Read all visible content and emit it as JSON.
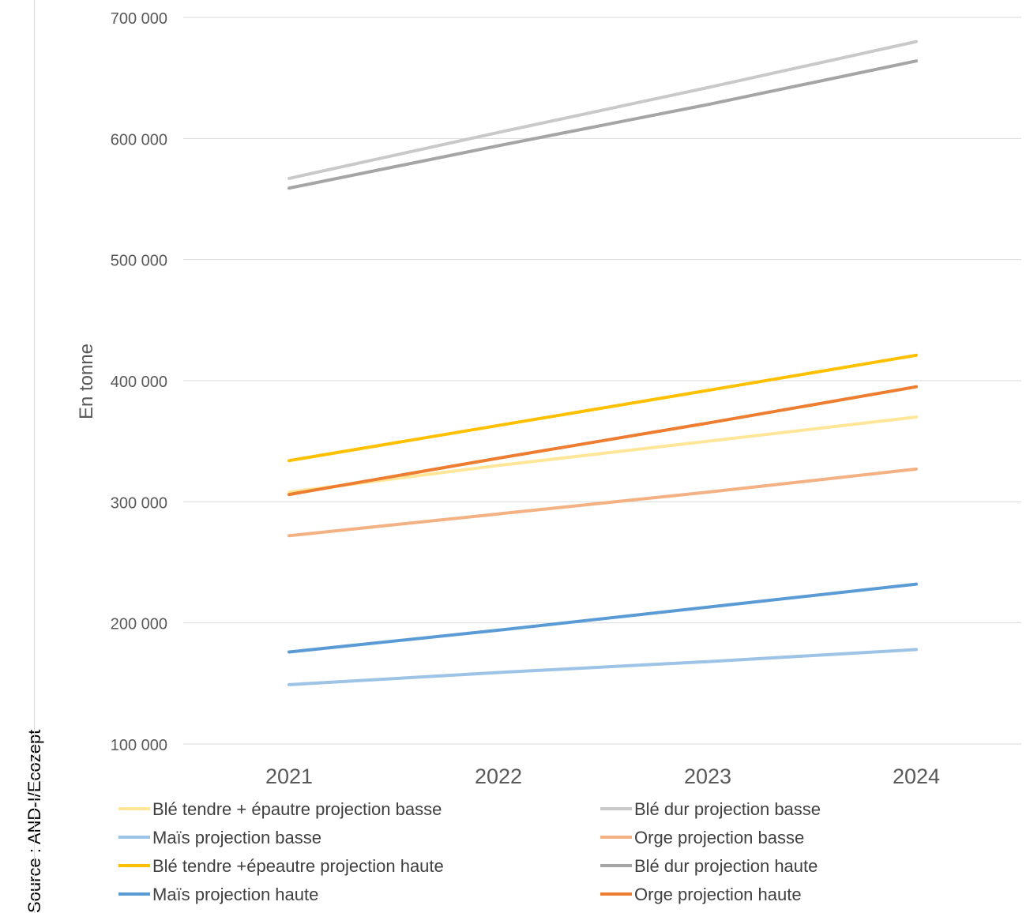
{
  "source_note": "Source : AND-I/Ecozept",
  "chart_data": {
    "type": "line",
    "title": "",
    "xlabel": "",
    "ylabel": "En tonne",
    "categories": [
      "2021",
      "2022",
      "2023",
      "2024"
    ],
    "ylim": [
      100000,
      700000
    ],
    "yticks": [
      100000,
      200000,
      300000,
      400000,
      500000,
      600000,
      700000
    ],
    "ytick_labels": [
      "100 000",
      "200 000",
      "300 000",
      "400 000",
      "500 000",
      "600 000",
      "700 000"
    ],
    "grid": true,
    "legend_position": "bottom",
    "series": [
      {
        "name": "Blé tendre  + épautre projection basse",
        "color": "#ffe699",
        "values": [
          308000,
          330000,
          350000,
          370000
        ]
      },
      {
        "name": "Blé dur  projection basse",
        "color": "#c9c9c9",
        "values": [
          567000,
          605000,
          642000,
          680000
        ]
      },
      {
        "name": "Maïs  projection basse",
        "color": "#9dc3e6",
        "values": [
          149000,
          159000,
          168000,
          178000
        ]
      },
      {
        "name": "Orge  projection basse",
        "color": "#f4b183",
        "values": [
          272000,
          290000,
          308000,
          327000
        ]
      },
      {
        "name": "Blé tendre +épeautre  projection haute",
        "color": "#ffc000",
        "values": [
          334000,
          363000,
          392000,
          421000
        ]
      },
      {
        "name": "Blé dur  projection haute",
        "color": "#a5a5a5",
        "values": [
          559000,
          594000,
          628000,
          664000
        ]
      },
      {
        "name": "Maïs  projection haute",
        "color": "#5b9bd5",
        "values": [
          176000,
          194000,
          213000,
          232000
        ]
      },
      {
        "name": "Orge  projection haute",
        "color": "#ed7d31",
        "values": [
          306000,
          336000,
          365000,
          395000
        ]
      }
    ]
  }
}
